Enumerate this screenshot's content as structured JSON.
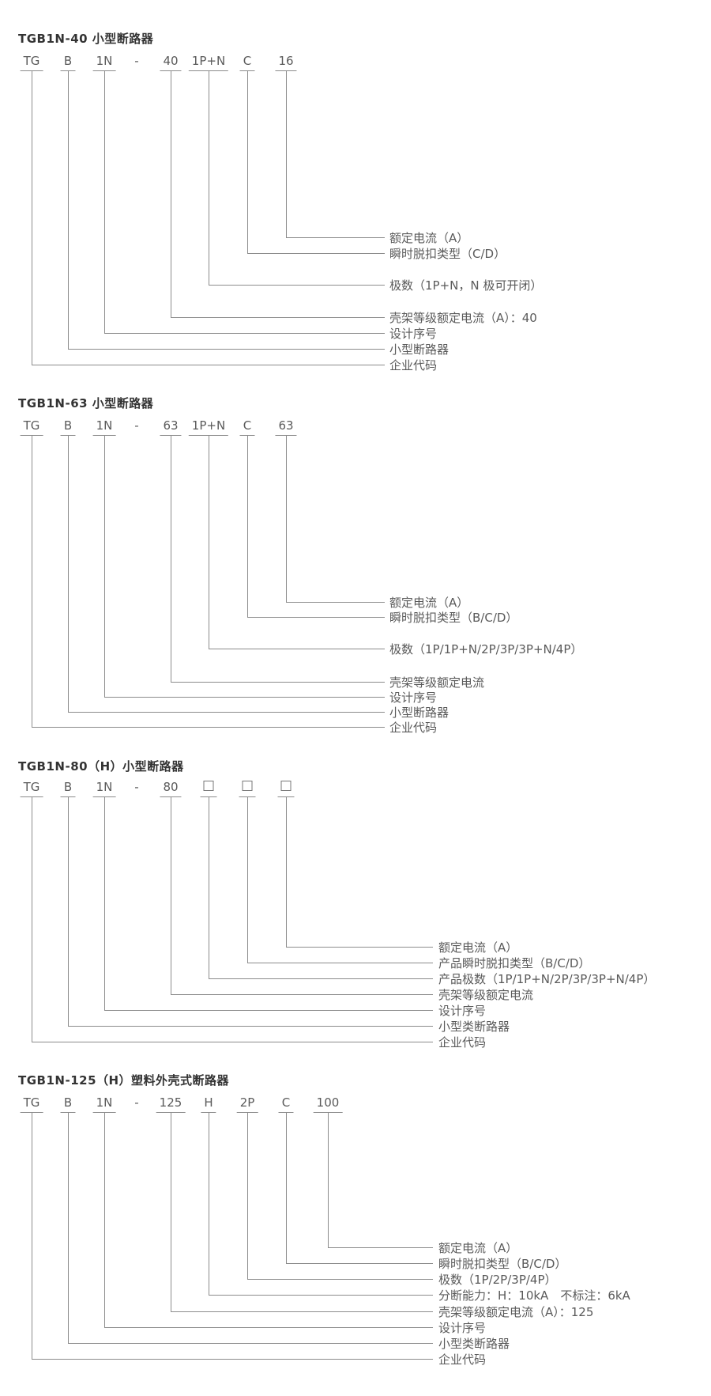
{
  "colors": {
    "background": "#ffffff",
    "title_text": "#333333",
    "body_text": "#5a5a5a",
    "line": "#8c8c8c"
  },
  "sections": [
    {
      "title": "TGB1N-40 小型断路器",
      "codes": [
        {
          "text": "TG"
        },
        {
          "text": "B"
        },
        {
          "text": "1N"
        },
        {
          "text": "-",
          "underline": false
        },
        {
          "text": "40"
        },
        {
          "text": "1P+N"
        },
        {
          "text": "C"
        },
        {
          "text": "16"
        }
      ],
      "labels": [
        {
          "col": 7,
          "text": "额定电流（A）"
        },
        {
          "col": 6,
          "text": "瞬时脱扣类型（C/D）"
        },
        {
          "col": 5,
          "text": "极数（1P+N，N 极可开闭）"
        },
        {
          "col": 4,
          "text": "壳架等级额定电流（A）：40"
        },
        {
          "col": 2,
          "text": "设计序号"
        },
        {
          "col": 1,
          "text": "小型断路器"
        },
        {
          "col": 0,
          "text": "企业代码"
        }
      ]
    },
    {
      "title": "TGB1N-63 小型断路器",
      "codes": [
        {
          "text": "TG"
        },
        {
          "text": "B"
        },
        {
          "text": "1N"
        },
        {
          "text": "-",
          "underline": false
        },
        {
          "text": "63"
        },
        {
          "text": "1P+N"
        },
        {
          "text": "C"
        },
        {
          "text": "63"
        }
      ],
      "labels": [
        {
          "col": 7,
          "text": "额定电流（A）"
        },
        {
          "col": 6,
          "text": "瞬时脱扣类型（B/C/D）"
        },
        {
          "col": 5,
          "text": "极数（1P/1P+N/2P/3P/3P+N/4P）"
        },
        {
          "col": 4,
          "text": "壳架等级额定电流"
        },
        {
          "col": 2,
          "text": "设计序号"
        },
        {
          "col": 1,
          "text": "小型断路器"
        },
        {
          "col": 0,
          "text": "企业代码"
        }
      ]
    },
    {
      "title": "TGB1N-80（H）小型断路器",
      "codes": [
        {
          "text": "TG"
        },
        {
          "text": "B"
        },
        {
          "text": "1N"
        },
        {
          "text": "-",
          "underline": false
        },
        {
          "text": "80"
        },
        {
          "icon": "placeholder-box"
        },
        {
          "icon": "placeholder-box"
        },
        {
          "icon": "placeholder-box"
        }
      ],
      "labels": [
        {
          "col": 7,
          "text": "额定电流（A）"
        },
        {
          "col": 6,
          "text": "产品瞬时脱扣类型（B/C/D）"
        },
        {
          "col": 5,
          "text": "产品极数（1P/1P+N/2P/3P/3P+N/4P）"
        },
        {
          "col": 4,
          "text": "壳架等级额定电流"
        },
        {
          "col": 2,
          "text": "设计序号"
        },
        {
          "col": 1,
          "text": "小型类断路器"
        },
        {
          "col": 0,
          "text": "企业代码"
        }
      ]
    },
    {
      "title": "TGB1N-125（H）塑料外壳式断路器",
      "codes": [
        {
          "text": "TG"
        },
        {
          "text": "B"
        },
        {
          "text": "1N"
        },
        {
          "text": "-",
          "underline": false
        },
        {
          "text": "125"
        },
        {
          "text": "H"
        },
        {
          "text": "2P"
        },
        {
          "text": "C"
        },
        {
          "text": "100"
        }
      ],
      "labels": [
        {
          "col": 8,
          "text": "额定电流（A）"
        },
        {
          "col": 7,
          "text": "瞬时脱扣类型（B/C/D）"
        },
        {
          "col": 6,
          "text": "极数（1P/2P/3P/4P）"
        },
        {
          "col": 5,
          "text": "分断能力：H：10kA　不标注：6kA"
        },
        {
          "col": 4,
          "text": "壳架等级额定电流（A）：125"
        },
        {
          "col": 2,
          "text": "设计序号"
        },
        {
          "col": 1,
          "text": "小型类断路器"
        },
        {
          "col": 0,
          "text": "企业代码"
        }
      ]
    }
  ]
}
